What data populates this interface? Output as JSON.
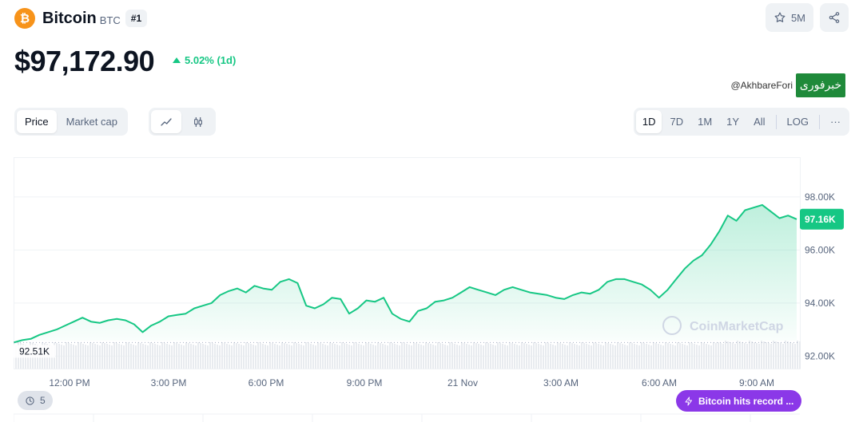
{
  "coin": {
    "logo_symbol": "₿",
    "name": "Bitcoin",
    "symbol": "BTC",
    "rank": "#1",
    "price": "$97,172.90",
    "change": "5.02% (1d)",
    "change_direction": "up"
  },
  "actions": {
    "watchlist_count": "5M",
    "watch_icon": "star-icon",
    "share_icon": "share-icon"
  },
  "watermark": {
    "handle": "@AkhbareFori",
    "logo_text": "خبرفوری"
  },
  "controls": {
    "type_options": [
      "Price",
      "Market cap"
    ],
    "type_active": "Price",
    "chart_styles": [
      "line-chart-icon",
      "candlestick-icon"
    ],
    "chart_style_active": "line-chart-icon",
    "ranges": [
      "1D",
      "7D",
      "1M",
      "1Y",
      "All"
    ],
    "range_active": "1D",
    "log_label": "LOG",
    "more_label": "···"
  },
  "chart_data": {
    "type": "area",
    "title": "",
    "x_ticks": [
      "12:00 PM",
      "3:00 PM",
      "6:00 PM",
      "9:00 PM",
      "21 Nov",
      "3:00 AM",
      "6:00 AM",
      "9:00 AM"
    ],
    "y_ticks": [
      "98.00K",
      "96.00K",
      "94.00K",
      "92.00K"
    ],
    "ylim": [
      91500,
      99500
    ],
    "open_label": "92.51K",
    "open_value": 92510,
    "current_label": "97.16K",
    "current_value": 97160,
    "brand_watermark": "CoinMarketCap",
    "colors": {
      "line": "#16c784",
      "fill_top": "#16c784",
      "badge": "#16c784",
      "volume": "#e8ebef"
    },
    "series": [
      {
        "values": [
          92510,
          92600,
          92650,
          92800,
          92900,
          93000,
          93150,
          93300,
          93450,
          93300,
          93250,
          93350,
          93400,
          93350,
          93200,
          92900,
          93150,
          93300,
          93500,
          93550,
          93600,
          93800,
          93900,
          94000,
          94300,
          94450,
          94550,
          94400,
          94650,
          94550,
          94500,
          94800,
          94900,
          94750,
          93900,
          93800,
          93950,
          94200,
          94150,
          93600,
          93800,
          94100,
          94050,
          94200,
          93600,
          93400,
          93300,
          93700,
          93800,
          94050,
          94100,
          94200,
          94400,
          94600,
          94500,
          94400,
          94300,
          94500,
          94600,
          94500,
          94400,
          94350,
          94300,
          94200,
          94150,
          94300,
          94400,
          94350,
          94500,
          94800,
          94900,
          94900,
          94800,
          94700,
          94500,
          94200,
          94500,
          94900,
          95300,
          95600,
          95800,
          96200,
          96700,
          97300,
          97100,
          97500,
          97600,
          97700,
          97450,
          97200,
          97300,
          97160
        ]
      }
    ]
  },
  "footer": {
    "history_count": "5",
    "news_text": "Bitcoin hits record ..."
  }
}
